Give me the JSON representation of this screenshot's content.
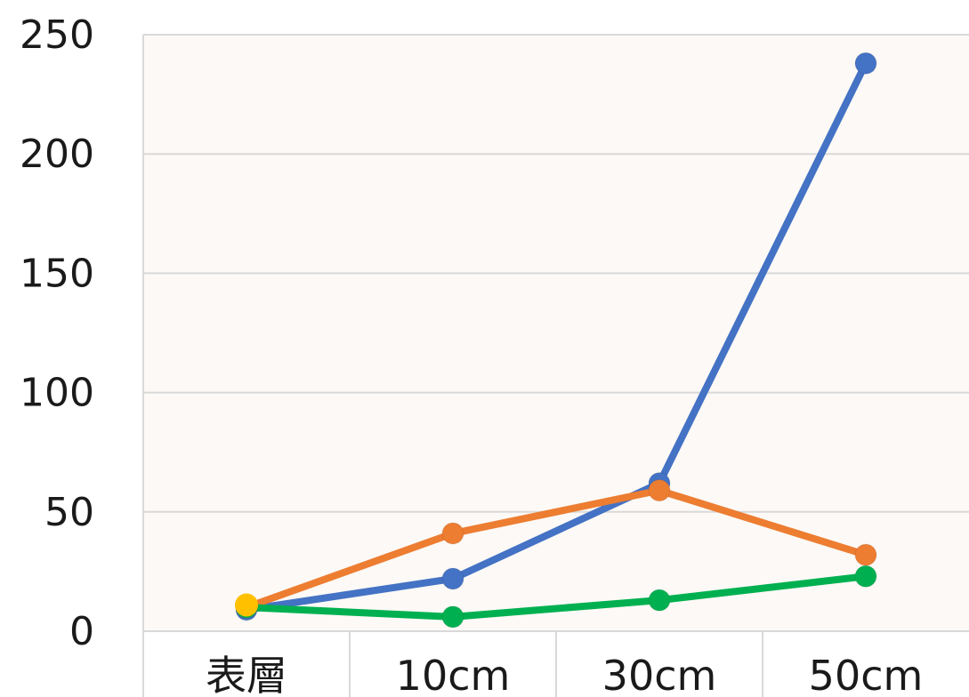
{
  "chart_data": {
    "type": "line",
    "categories": [
      "表層",
      "10cm",
      "30cm",
      "50cm"
    ],
    "series": [
      {
        "values": [
          9,
          22,
          62,
          238
        ],
        "color": "#4472C4"
      },
      {
        "values": [
          10,
          41,
          59,
          32
        ],
        "color": "#ED7D31"
      },
      {
        "values": [
          10,
          6,
          13,
          23
        ],
        "color": "#00B050"
      }
    ],
    "extra_points": [
      {
        "category": "表層",
        "value": 11,
        "color": "#FFC000"
      }
    ],
    "ylim": [
      0,
      250
    ],
    "yticks": [
      0,
      50,
      100,
      150,
      200,
      250
    ],
    "grid": true,
    "plot_background": "#FCF9F6",
    "gridline_color": "#D9D9D9"
  }
}
